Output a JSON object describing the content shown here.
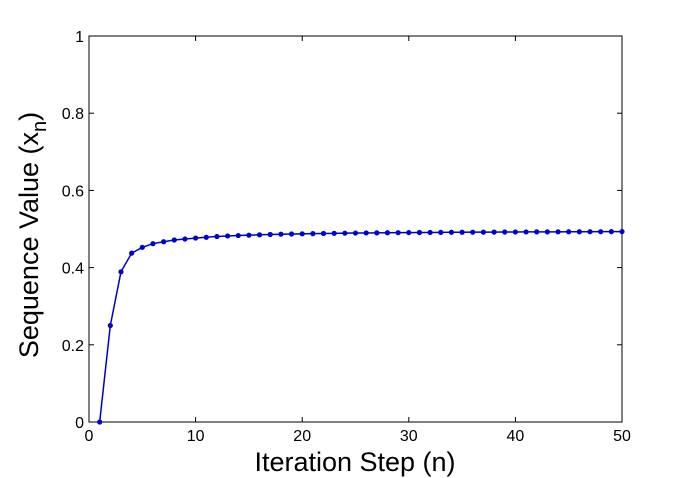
{
  "chart_data": {
    "type": "line",
    "xlabel": "Iteration Step (n)",
    "ylabel_main": "Sequence Value (x",
    "ylabel_sub": "n",
    "ylabel_close": ")",
    "xlim": [
      0,
      50
    ],
    "ylim": [
      0,
      1
    ],
    "xticks": [
      0,
      10,
      20,
      30,
      40,
      50
    ],
    "yticks": [
      0,
      0.2,
      0.4,
      0.6,
      0.8,
      1
    ],
    "xtick_labels": [
      "0",
      "10",
      "20",
      "30",
      "40",
      "50"
    ],
    "ytick_labels": [
      "0",
      "0.2",
      "0.4",
      "0.6",
      "0.8",
      "1"
    ],
    "grid": false,
    "series": [
      {
        "color": "#0000cc",
        "marker": "dot",
        "x": [
          1,
          2,
          3,
          4,
          5,
          6,
          7,
          8,
          9,
          10,
          11,
          12,
          13,
          14,
          15,
          16,
          17,
          18,
          19,
          20,
          21,
          22,
          23,
          24,
          25,
          26,
          27,
          28,
          29,
          30,
          31,
          32,
          33,
          34,
          35,
          36,
          37,
          38,
          39,
          40,
          41,
          42,
          43,
          44,
          45,
          46,
          47,
          48,
          49,
          50
        ],
        "y": [
          0,
          0.25,
          0.389,
          0.4375,
          0.4525,
          0.462,
          0.467,
          0.4715,
          0.474,
          0.4765,
          0.4785,
          0.4805,
          0.482,
          0.483,
          0.484,
          0.485,
          0.4858,
          0.4865,
          0.487,
          0.4875,
          0.488,
          0.4884,
          0.4888,
          0.4892,
          0.4895,
          0.4898,
          0.49,
          0.4903,
          0.4905,
          0.4907,
          0.4909,
          0.4911,
          0.4913,
          0.4915,
          0.4916,
          0.4918,
          0.4919,
          0.492,
          0.4922,
          0.4923,
          0.4924,
          0.4925,
          0.4926,
          0.4927,
          0.4928,
          0.4929,
          0.493,
          0.4931,
          0.4932,
          0.4933
        ]
      }
    ]
  }
}
